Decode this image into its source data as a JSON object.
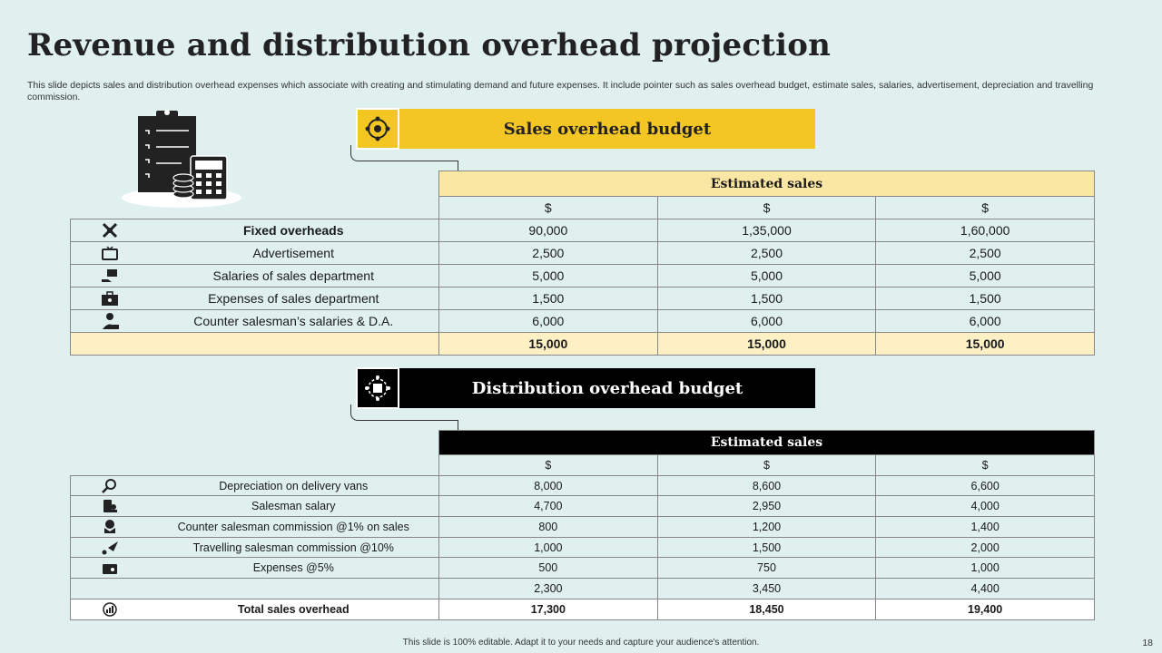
{
  "title": "Revenue and distribution overhead projection",
  "subtitle": "This slide depicts sales and distribution overhead expenses which associate with creating and stimulating demand and future expenses. It include pointer such as sales overhead budget, estimate sales, salaries, advertisement, depreciation and travelling commission.",
  "sales_section": {
    "title": "Sales overhead  budget",
    "estimated_label": "Estimated sales",
    "currency": [
      "$",
      "$",
      "$"
    ],
    "rows": [
      {
        "icon": "tools-icon",
        "label": "Fixed overheads",
        "values": [
          "90,000",
          "1,35,000",
          "1,60,000"
        ]
      },
      {
        "icon": "tv-icon",
        "label": "Advertisement",
        "values": [
          "2,500",
          "2,500",
          "2,500"
        ]
      },
      {
        "icon": "hand-money-icon",
        "label": "Salaries of sales department",
        "values": [
          "5,000",
          "5,000",
          "5,000"
        ]
      },
      {
        "icon": "briefcase-icon",
        "label": "Expenses of sales department",
        "values": [
          "1,500",
          "1,500",
          "1,500"
        ]
      },
      {
        "icon": "salesman-icon",
        "label": "Counter salesman’s salaries & D.A.",
        "values": [
          "6,000",
          "6,000",
          "6,000"
        ]
      }
    ],
    "totals": [
      "15,000",
      "15,000",
      "15,000"
    ]
  },
  "distribution_section": {
    "title": "Distribution overhead budget",
    "estimated_label": "Estimated sales",
    "currency": [
      "$",
      "$",
      "$"
    ],
    "rows": [
      {
        "icon": "search-chart-icon",
        "label": "Depreciation  on delivery  vans",
        "values": [
          "8,000",
          "8,600",
          "6,600"
        ]
      },
      {
        "icon": "phone-user-icon",
        "label": "Salesman salary",
        "values": [
          "4,700",
          "2,950",
          "4,000"
        ]
      },
      {
        "icon": "hand-dollar-icon",
        "label": "Counter salesman commission @1% on sales",
        "values": [
          "800",
          "1,200",
          "1,400"
        ]
      },
      {
        "icon": "plane-pin-icon",
        "label": "Travelling  salesman commission @10%",
        "values": [
          "1,000",
          "1,500",
          "2,000"
        ]
      },
      {
        "icon": "wallet-icon",
        "label": "Expenses @5%",
        "values": [
          "500",
          "750",
          "1,000"
        ]
      }
    ],
    "subtotals": [
      "2,300",
      "3,450",
      "4,400"
    ],
    "total_label": "Total sales overhead",
    "totals": [
      "17,300",
      "18,450",
      "19,400"
    ]
  },
  "footer": "This slide is 100% editable.  Adapt it to your needs and capture your audience's attention.",
  "page_number": "18",
  "colors": {
    "background": "#dff0ef",
    "accent_yellow": "#f3c623",
    "light_yellow": "#fbe7a4",
    "black": "#000000"
  }
}
